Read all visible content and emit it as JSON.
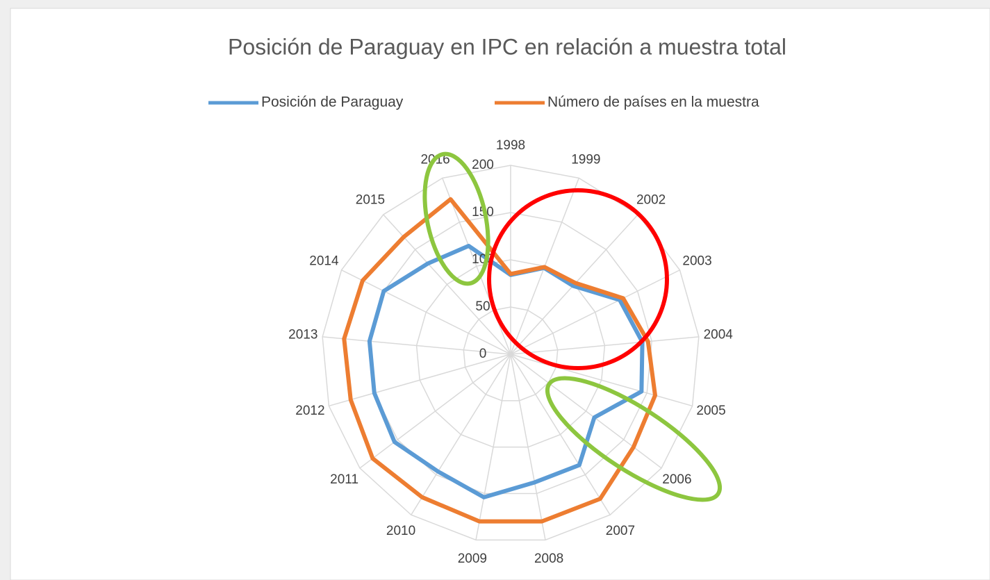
{
  "chart_data": {
    "type": "radar",
    "title": "Posición de Paraguay en IPC en relación a muestra total",
    "categories": [
      "1998",
      "1999",
      "2002",
      "2003",
      "2004",
      "2005",
      "2006",
      "2007",
      "2008",
      "2009",
      "2010",
      "2011",
      "2012",
      "2013",
      "2014",
      "2015",
      "2016"
    ],
    "series": [
      {
        "name": "Posición de Paraguay",
        "color": "#5b9bd5",
        "values": [
          84,
          98,
          98,
          129,
          140,
          144,
          111,
          138,
          138,
          154,
          146,
          154,
          150,
          150,
          150,
          130,
          123
        ]
      },
      {
        "name": "Número de países en la muestra",
        "color": "#ed7d31",
        "values": [
          85,
          99,
          102,
          133,
          146,
          159,
          163,
          180,
          180,
          180,
          178,
          183,
          176,
          177,
          175,
          168,
          176
        ]
      }
    ],
    "ylim": [
      0,
      200
    ],
    "yticks": [
      0,
      50,
      100,
      150,
      200
    ],
    "grid": true,
    "legend": "top"
  }
}
